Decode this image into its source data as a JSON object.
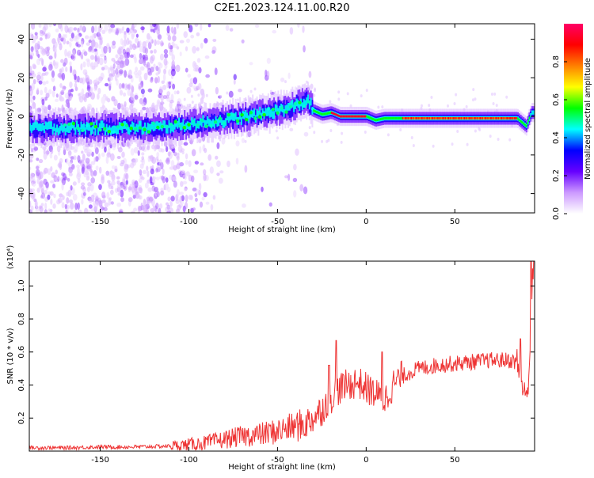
{
  "title": "C2E1.2023.124.11.00.R20",
  "chart_data": [
    {
      "type": "heatmap",
      "xlabel": "Height of straight line (km)",
      "ylabel": "Frequency (Hz)",
      "xlim": [
        -190,
        95
      ],
      "ylim": [
        -50,
        48
      ],
      "xticks": [
        -150,
        -100,
        -50,
        0,
        50
      ],
      "yticks": [
        -40,
        -20,
        0,
        20,
        40
      ],
      "colorbar": {
        "label": "Normalized spectral amplitude",
        "range": [
          0,
          1
        ],
        "ticks": [
          0.0,
          0.2,
          0.4,
          0.6,
          0.8
        ],
        "colormap": [
          "#ffffff",
          "#cc99ff",
          "#6600ff",
          "#0000ff",
          "#00ffff",
          "#00ff00",
          "#ffff00",
          "#ff8000",
          "#ff0000",
          "#ff0066"
        ]
      },
      "ridge": [
        {
          "x": -190,
          "y": -6
        },
        {
          "x": -150,
          "y": -6
        },
        {
          "x": -120,
          "y": -6
        },
        {
          "x": -100,
          "y": -4
        },
        {
          "x": -80,
          "y": -2
        },
        {
          "x": -60,
          "y": 1
        },
        {
          "x": -45,
          "y": 4
        },
        {
          "x": -33,
          "y": 8
        },
        {
          "x": -30,
          "y": 3
        },
        {
          "x": -25,
          "y": 1
        },
        {
          "x": -20,
          "y": 2
        },
        {
          "x": -15,
          "y": 0
        },
        {
          "x": 0,
          "y": 0
        },
        {
          "x": 5,
          "y": -2
        },
        {
          "x": 10,
          "y": -1
        },
        {
          "x": 20,
          "y": -1
        },
        {
          "x": 50,
          "y": -1
        },
        {
          "x": 85,
          "y": -1
        },
        {
          "x": 90,
          "y": -5
        },
        {
          "x": 93,
          "y": 2
        }
      ]
    },
    {
      "type": "line",
      "xlabel": "Height of straight line (km)",
      "ylabel": "SNR (10 * v/v)",
      "multiplier": "(x10⁴)",
      "xlim": [
        -190,
        95
      ],
      "ylim": [
        0,
        1.15
      ],
      "xticks": [
        -150,
        -100,
        -50,
        0,
        50
      ],
      "yticks": [
        0.2,
        0.4,
        0.6,
        0.8,
        1.0
      ],
      "color": "#ee3333",
      "x": [
        -190,
        -170,
        -150,
        -130,
        -112,
        -100,
        -90,
        -80,
        -70,
        -60,
        -50,
        -40,
        -35,
        -30,
        -25,
        -22,
        -20,
        -18,
        -15,
        -10,
        -5,
        0,
        5,
        10,
        15,
        20,
        25,
        30,
        40,
        50,
        60,
        70,
        80,
        85,
        88,
        90,
        92,
        94
      ],
      "values": [
        0.02,
        0.02,
        0.025,
        0.025,
        0.03,
        0.04,
        0.05,
        0.07,
        0.09,
        0.1,
        0.12,
        0.15,
        0.16,
        0.2,
        0.25,
        0.3,
        0.32,
        0.35,
        0.38,
        0.4,
        0.42,
        0.38,
        0.35,
        0.3,
        0.4,
        0.45,
        0.48,
        0.5,
        0.52,
        0.53,
        0.54,
        0.55,
        0.55,
        0.54,
        0.4,
        0.3,
        0.5,
        1.1
      ],
      "spikes": [
        {
          "x": -21,
          "y": 0.52
        },
        {
          "x": -17,
          "y": 0.67
        },
        {
          "x": 9,
          "y": 0.6
        },
        {
          "x": 87,
          "y": 0.68
        },
        {
          "x": 93,
          "y": 1.15
        }
      ]
    }
  ]
}
